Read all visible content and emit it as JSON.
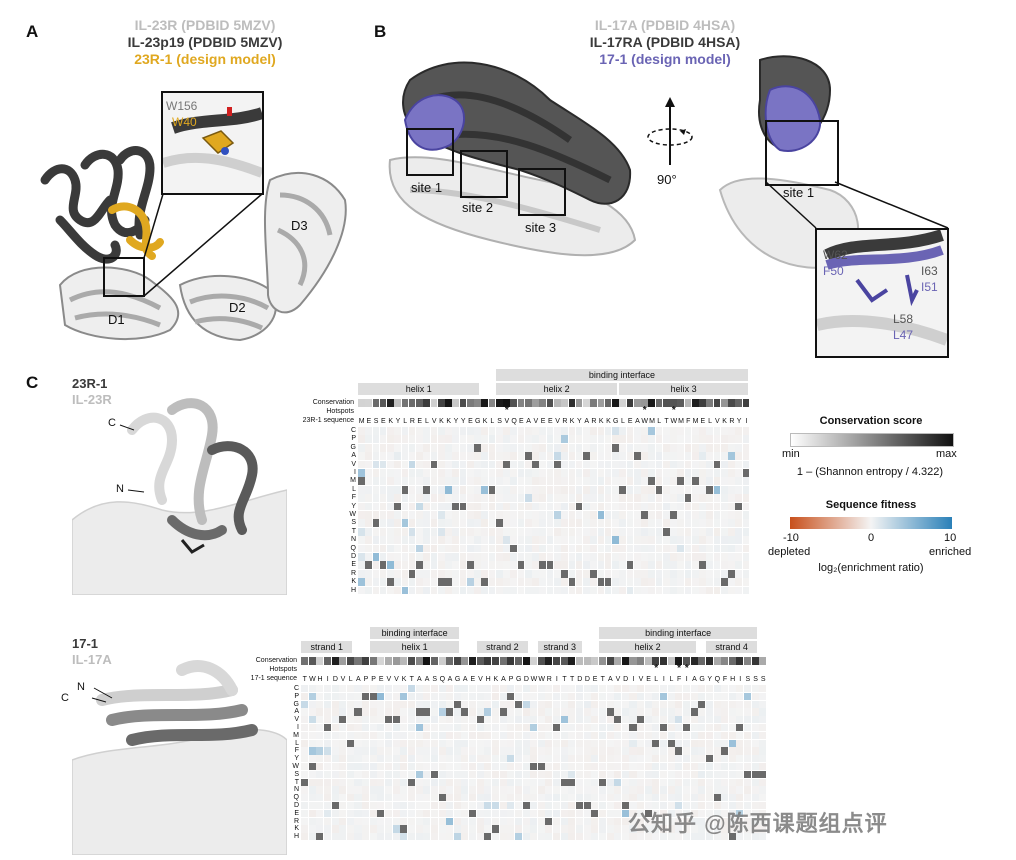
{
  "panelA": {
    "letter": "A",
    "legend": [
      "IL-23R (PDBID 5MZV)",
      "IL-23p19 (PDBID 5MZV)",
      "23R-1 (design model)"
    ],
    "legend_colors": [
      "#bdbdbd",
      "#3a3a3a",
      "#e0a820"
    ],
    "residues": [
      "W156",
      "W40"
    ],
    "domains": [
      "D1",
      "D2",
      "D3"
    ]
  },
  "panelB": {
    "letter": "B",
    "legend": [
      "IL-17A (PDBID 4HSA)",
      "IL-17RA (PDBID 4HSA)",
      "17-1 (design model)"
    ],
    "legend_colors": [
      "#bdbdbd",
      "#3a3a3a",
      "#6a64b4"
    ],
    "sites": [
      "site 1",
      "site 2",
      "site 3",
      "site 1"
    ],
    "rotation": "90°",
    "residues": [
      {
        "grey": "W62",
        "purple": "F50"
      },
      {
        "grey": "I63",
        "purple": "I51"
      },
      {
        "grey": "L58",
        "purple": "L47"
      }
    ]
  },
  "panelC": {
    "letter": "C",
    "row_labels": [
      "Conservation",
      "Hotspots"
    ],
    "aa_rows": [
      "C",
      "P",
      "G",
      "A",
      "V",
      "I",
      "M",
      "L",
      "F",
      "Y",
      "W",
      "S",
      "T",
      "N",
      "Q",
      "D",
      "E",
      "R",
      "K",
      "H"
    ],
    "heatmap1": {
      "name_dark": "23R-1",
      "name_light": "IL-23R",
      "termini": [
        "C",
        "N"
      ],
      "sequence_label": "23R-1 sequence",
      "sequence": "MESEKYLRELVKKYYEGKLSVQEAVEEVRKYARKKGLEAWMLTWMFMELVKRYI",
      "segments": [
        {
          "label": "helix 1",
          "start": 1,
          "end": 17
        },
        {
          "label": "helix 2",
          "start": 20,
          "end": 36
        },
        {
          "label": "helix 3",
          "start": 37,
          "end": 54
        }
      ],
      "interface": [
        {
          "label": "binding interface",
          "start": 20,
          "end": 54
        }
      ],
      "hotspots": [
        21,
        40,
        44
      ]
    },
    "heatmap2": {
      "name_dark": "17-1",
      "name_light": "IL-17A",
      "termini": [
        "N",
        "C"
      ],
      "sequence_label": "17-1 sequence",
      "sequence": "TWHIDVLAPPEVVKTAASQAGAEVHKAPGDWWRITTDDETAVDIVELILFIAGYQFHISSS",
      "segments": [
        {
          "label": "strand 1",
          "start": 1,
          "end": 7
        },
        {
          "label": "helix 1",
          "start": 10,
          "end": 21
        },
        {
          "label": "strand 2",
          "start": 24,
          "end": 30
        },
        {
          "label": "strand 3",
          "start": 32,
          "end": 37
        },
        {
          "label": "helix 2",
          "start": 40,
          "end": 52
        },
        {
          "label": "strand 4",
          "start": 54,
          "end": 60
        }
      ],
      "interface": [
        {
          "label": "binding interface",
          "start": 10,
          "end": 21
        },
        {
          "label": "binding interface",
          "start": 40,
          "end": 60
        }
      ],
      "hotspots": [
        47,
        50,
        51
      ]
    },
    "conservation_colorbar": {
      "title": "Conservation score",
      "min": "min",
      "max": "max",
      "caption": "1 – (Shannon entropy / 4.322)"
    },
    "fitness_colorbar": {
      "title": "Sequence fitness",
      "ticks": [
        "-10",
        "0",
        "10"
      ],
      "left_label": "depleted",
      "right_label": "enriched",
      "caption": "log₂(enrichment ratio)",
      "colors": {
        "depleted": "#c8501c",
        "neutral": "#f4f4f4",
        "enriched": "#2a80b8"
      }
    }
  },
  "watermark": "公知乎 @陈西课题组点评"
}
